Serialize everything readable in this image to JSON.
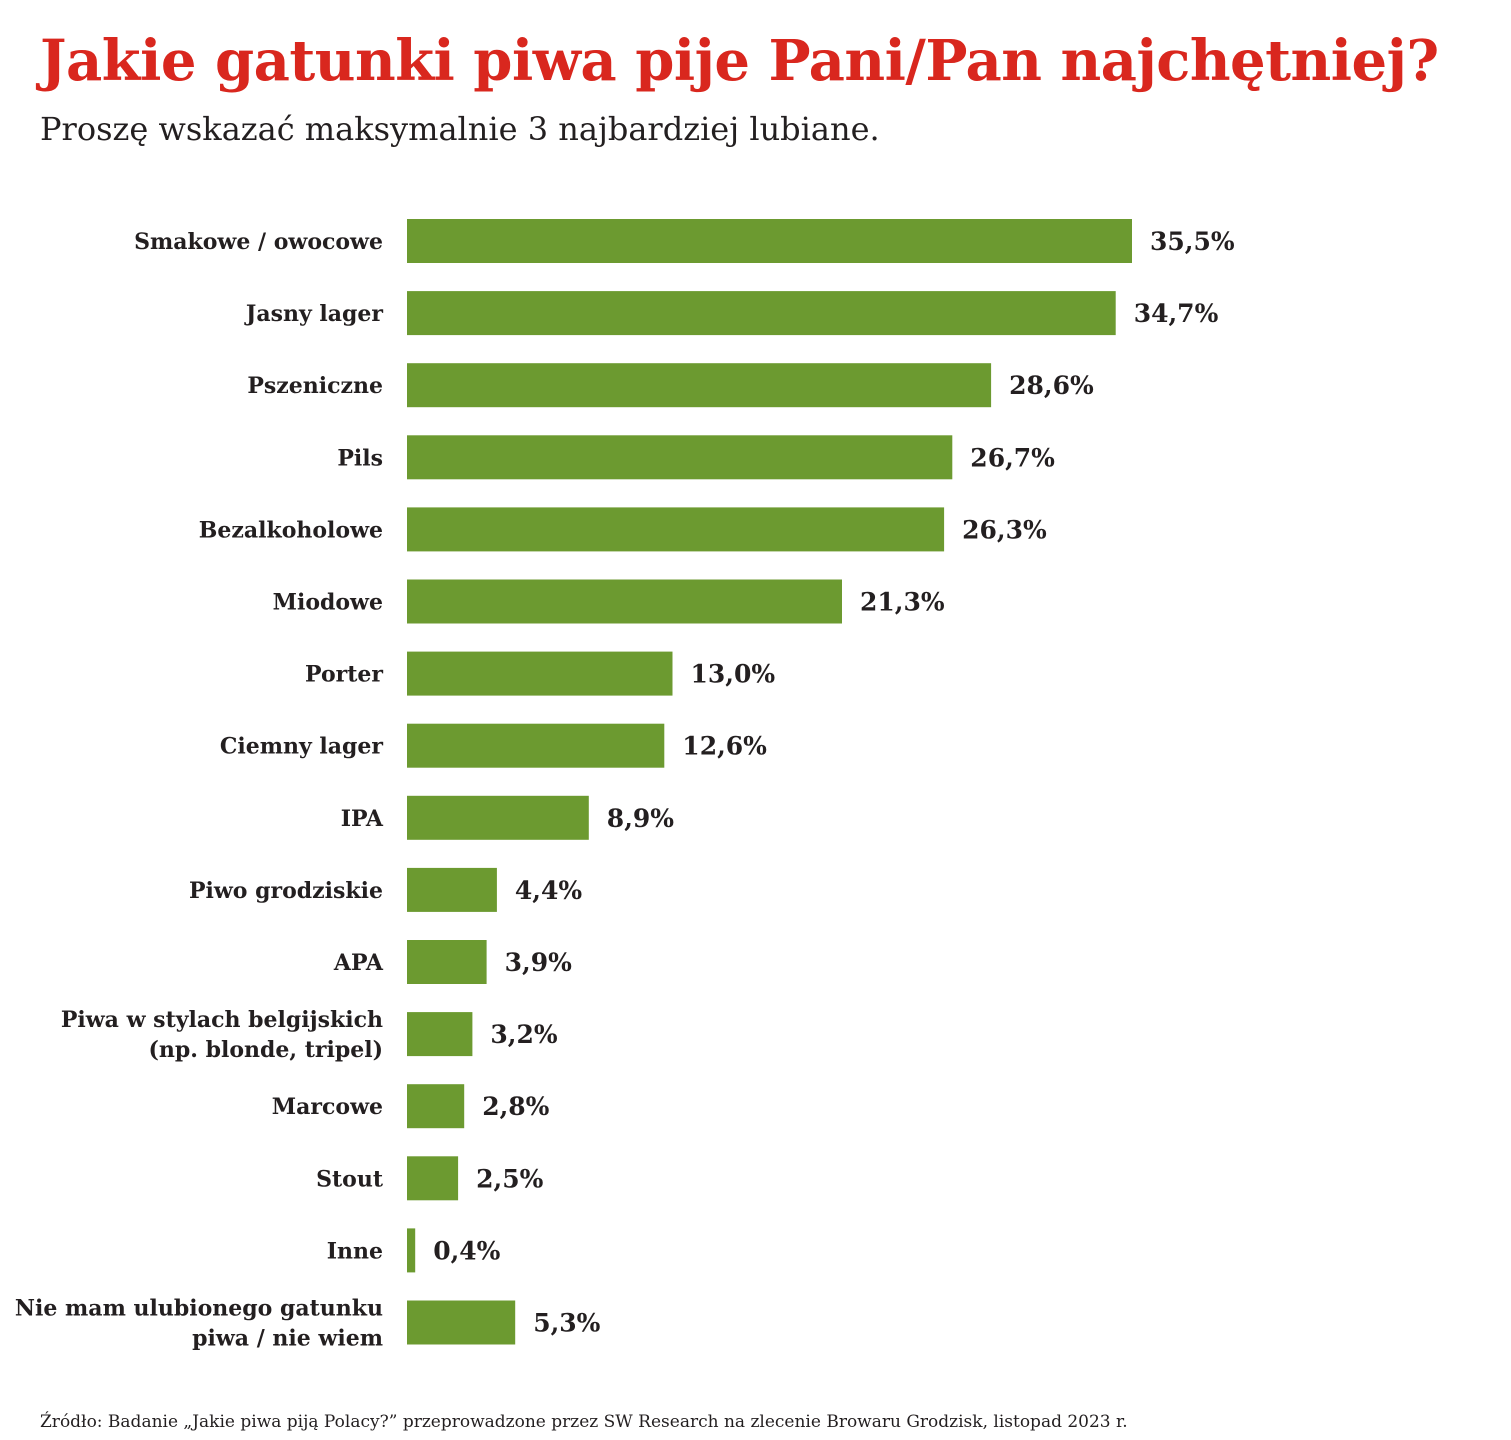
{
  "chart_data": {
    "type": "bar",
    "orientation": "horizontal",
    "title": "Jakie gatunki piwa pije Pani/Pan najchętniej?",
    "subtitle": "Proszę wskazać maksymalnie 3 najbardziej lubiane.",
    "categories": [
      [
        "Smakowe / owocowe"
      ],
      [
        "Jasny lager"
      ],
      [
        "Pszeniczne"
      ],
      [
        "Pils"
      ],
      [
        "Bezalkoholowe"
      ],
      [
        "Miodowe"
      ],
      [
        "Porter"
      ],
      [
        "Ciemny lager"
      ],
      [
        "IPA"
      ],
      [
        "Piwo grodziskie"
      ],
      [
        "APA"
      ],
      [
        "Piwa w stylach belgijskich",
        "(np. blonde, tripel)"
      ],
      [
        "Marcowe"
      ],
      [
        "Stout"
      ],
      [
        "Inne"
      ],
      [
        "Nie mam ulubionego gatunku",
        "piwa / nie wiem"
      ]
    ],
    "values": [
      35.5,
      34.7,
      28.6,
      26.7,
      26.3,
      21.3,
      13.0,
      12.6,
      8.9,
      4.4,
      3.9,
      3.2,
      2.8,
      2.5,
      0.4,
      5.3
    ],
    "value_labels": [
      "35,5%",
      "34,7%",
      "28,6%",
      "26,7%",
      "26,3%",
      "21,3%",
      "13,0%",
      "12,6%",
      "8,9%",
      "4,4%",
      "3,9%",
      "3,2%",
      "2,8%",
      "2,5%",
      "0,4%",
      "5,3%"
    ],
    "unit": "%",
    "bar_color": "#6c9a30",
    "title_color": "#d9271e",
    "xlim": [
      0,
      35.5
    ],
    "grid": false,
    "axis_lines": false,
    "legend": "none",
    "source": "Źródło: Badanie „Jakie piwa piją Polacy?” przeprowadzone przez SW Research na zlecenie Browaru Grodzisk, listopad 2023 r."
  }
}
